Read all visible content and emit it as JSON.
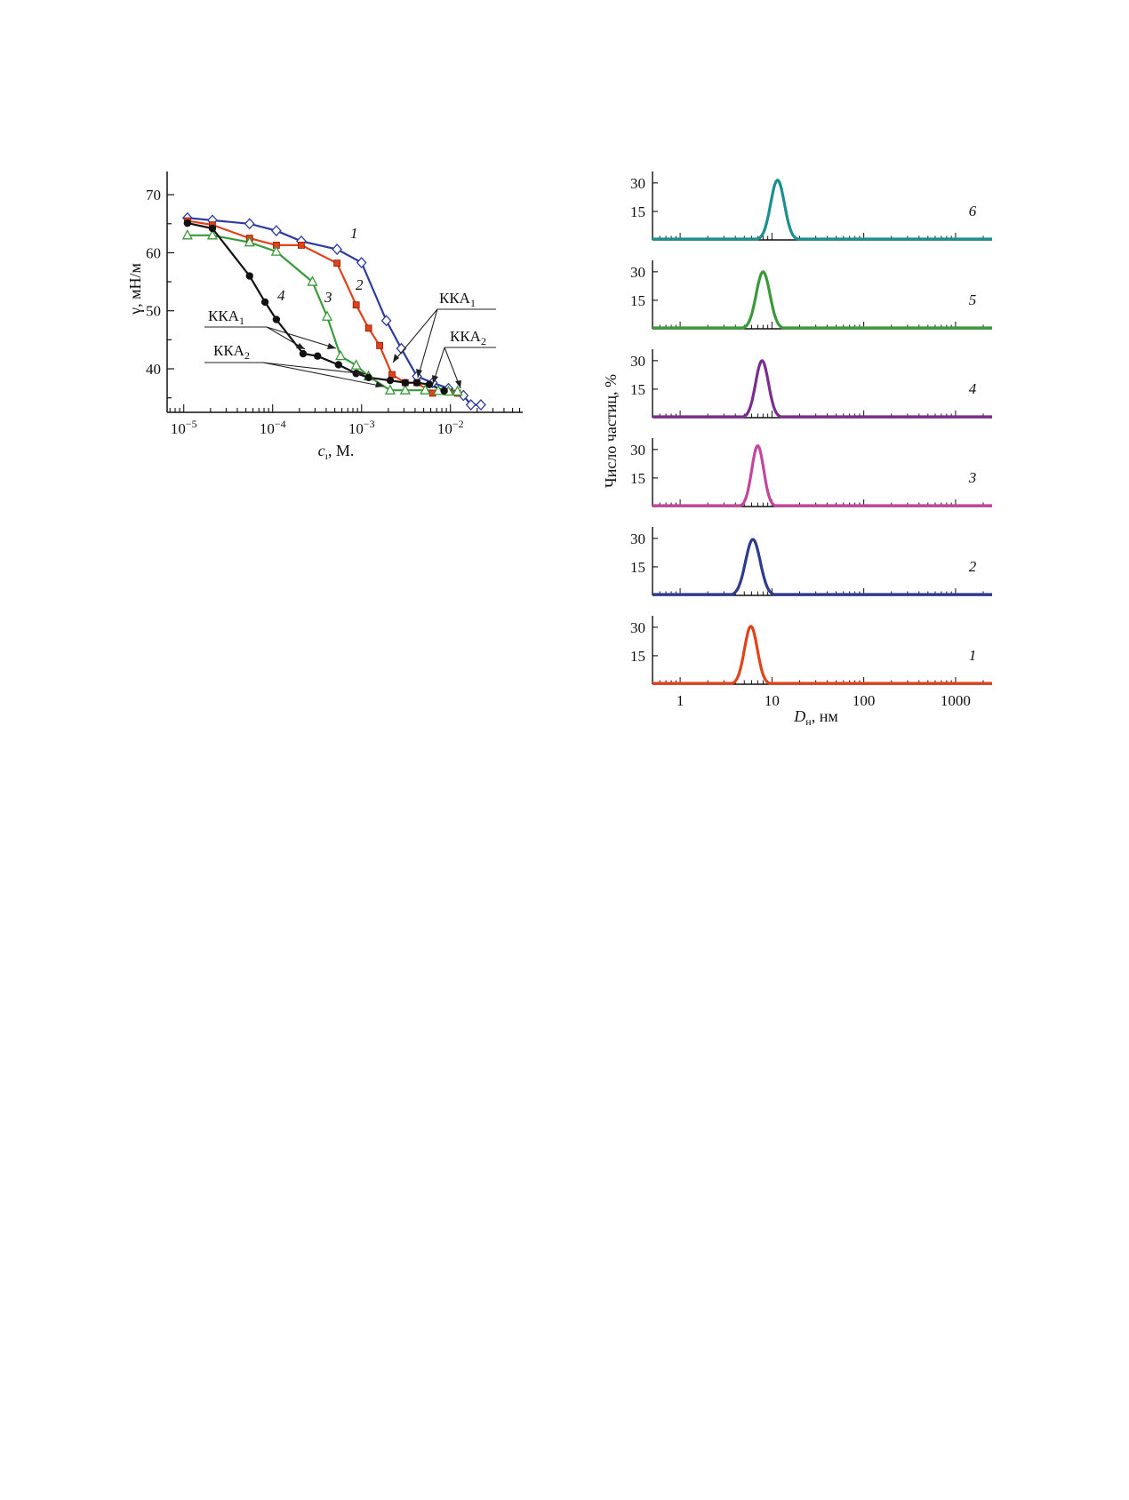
{
  "chart_data": [
    {
      "type": "line",
      "x_scale": "log",
      "xlim": [
        6.5e-06,
        0.065
      ],
      "ylim": [
        32.5,
        74
      ],
      "xlabel_main": "c",
      "xlabel_sub": "ı",
      "xlabel_rest": ", M.",
      "ylabel": "γ, мН/м",
      "yticks": [
        "40",
        "50",
        "60",
        "70"
      ],
      "ytick_values": [
        40,
        50,
        60,
        70
      ],
      "xtick_values": [
        1e-05,
        0.0001,
        0.001,
        0.01
      ],
      "xtick_bases": [
        "10",
        "10",
        "10",
        "10"
      ],
      "xtick_exps": [
        "−5",
        "−4",
        "−3",
        "−2"
      ],
      "series": [
        {
          "name": "1",
          "color": "#2d3a9e",
          "marker": "diamond-open",
          "x": [
            1.1e-05,
            2.1e-05,
            5.5e-05,
            0.00011,
            0.00021,
            0.00053,
            0.001,
            0.0019,
            0.0028,
            0.0042,
            0.0063,
            0.0095,
            0.014,
            0.017,
            0.022
          ],
          "y": [
            66,
            65.6,
            65,
            63.8,
            62,
            60.6,
            58.3,
            48.3,
            43.5,
            38.7,
            37.6,
            36.6,
            35.4,
            33.8,
            33.8
          ]
        },
        {
          "name": "2",
          "color": "#e0421a",
          "marker": "square-filled",
          "x": [
            1.1e-05,
            2.1e-05,
            5.5e-05,
            0.00011,
            0.00021,
            0.00053,
            0.00087,
            0.0012,
            0.0016,
            0.0022,
            0.0031,
            0.0042,
            0.0063,
            0.0095,
            0.012
          ],
          "y": [
            65.5,
            64.8,
            62.5,
            61.3,
            61.3,
            58.2,
            51,
            47,
            44,
            39,
            37.6,
            37.6,
            35.8,
            36,
            35.8
          ]
        },
        {
          "name": "3",
          "color": "#3a9a3a",
          "marker": "triangle-open",
          "x": [
            1.1e-05,
            2.1e-05,
            5.5e-05,
            0.00011,
            0.00028,
            0.00041,
            0.00058,
            0.00087,
            0.0012,
            0.0021,
            0.0031,
            0.0052,
            0.0073,
            0.0095,
            0.012
          ],
          "y": [
            63,
            63,
            61.8,
            60.2,
            55,
            49,
            42.2,
            40.6,
            38.7,
            36.3,
            36.3,
            36.3,
            36.2,
            36.1,
            36.1
          ]
        },
        {
          "name": "4",
          "color": "#111111",
          "marker": "circle-filled",
          "x": [
            1.1e-05,
            2.1e-05,
            5.5e-05,
            8.2e-05,
            0.00011,
            0.00022,
            0.00032,
            0.00055,
            0.00087,
            0.0012,
            0.0021,
            0.0031,
            0.0042,
            0.0058,
            0.0085
          ],
          "y": [
            65.1,
            64.2,
            56,
            51.5,
            48.5,
            42.6,
            42.2,
            40.7,
            39.2,
            38.5,
            38,
            37.6,
            37.6,
            37.3,
            36.2
          ]
        }
      ],
      "annotations": {
        "kka1_left": {
          "base": "ККА",
          "sub": "1"
        },
        "kka2_left": {
          "base": "ККА",
          "sub": "2"
        },
        "kka1_right": {
          "base": "ККА",
          "sub": "1"
        },
        "kka2_right": {
          "base": "ККА",
          "sub": "2"
        }
      }
    },
    {
      "type": "line",
      "subtype": "stacked-distributions",
      "x_scale": "log",
      "xlim": [
        0.5,
        2500
      ],
      "panel_ylim": [
        0,
        36
      ],
      "ylabel": "Число частиц, %",
      "xlabel_main": "D",
      "xlabel_sub": "н",
      "xlabel_rest": ", нм",
      "xticks": [
        "1",
        "10",
        "100",
        "1000"
      ],
      "xtick_values": [
        1,
        10,
        100,
        1000
      ],
      "yticks": [
        "15",
        "30"
      ],
      "ytick_values": [
        15,
        30
      ],
      "panels": [
        {
          "label": "6",
          "color": "#1a8f8c",
          "peak_x": 11.5,
          "peak_y": 31.5,
          "width": 0.075
        },
        {
          "label": "5",
          "color": "#3a9a3a",
          "peak_x": 8.0,
          "peak_y": 30,
          "width": 0.075
        },
        {
          "label": "4",
          "color": "#7b2d8e",
          "peak_x": 7.8,
          "peak_y": 30,
          "width": 0.07
        },
        {
          "label": "3",
          "color": "#c4459c",
          "peak_x": 7.0,
          "peak_y": 32,
          "width": 0.065
        },
        {
          "label": "2",
          "color": "#2d3a8e",
          "peak_x": 6.2,
          "peak_y": 29.5,
          "width": 0.08
        },
        {
          "label": "1",
          "color": "#e0421a",
          "peak_x": 5.9,
          "peak_y": 30.5,
          "width": 0.07
        }
      ]
    }
  ]
}
